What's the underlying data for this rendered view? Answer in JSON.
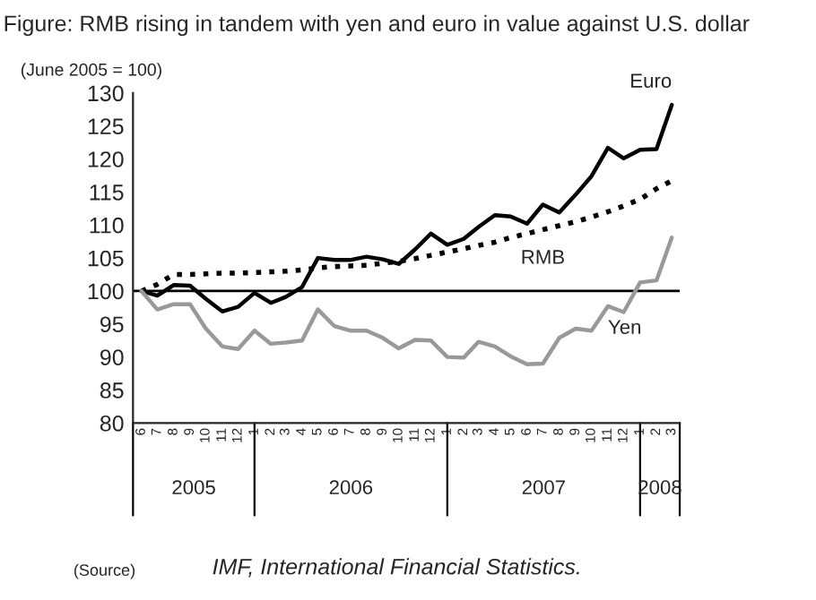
{
  "chart_data": {
    "type": "line",
    "title": "Figure: RMB rising in tandem with yen and euro in value against U.S. dollar",
    "ylabel": "(June 2005 = 100)",
    "x": [
      "2005-06",
      "2005-07",
      "2005-08",
      "2005-09",
      "2005-10",
      "2005-11",
      "2005-12",
      "2006-01",
      "2006-02",
      "2006-03",
      "2006-04",
      "2006-05",
      "2006-06",
      "2006-07",
      "2006-08",
      "2006-09",
      "2006-10",
      "2006-11",
      "2006-12",
      "2007-01",
      "2007-02",
      "2007-03",
      "2007-04",
      "2007-05",
      "2007-06",
      "2007-07",
      "2007-08",
      "2007-09",
      "2007-10",
      "2007-11",
      "2007-12",
      "2008-01",
      "2008-02",
      "2008-03"
    ],
    "series": [
      {
        "name": "Euro",
        "color": "#000000",
        "line_style": "solid",
        "values": [
          100,
          99.3,
          100.9,
          100.8,
          98.8,
          96.9,
          97.6,
          99.7,
          98.2,
          99.1,
          100.6,
          105.0,
          104.7,
          104.7,
          105.2,
          104.8,
          104.1,
          106.3,
          108.7,
          107.0,
          107.9,
          109.7,
          111.5,
          111.3,
          110.2,
          113.1,
          111.9,
          114.6,
          117.4,
          121.7,
          120.1,
          121.4,
          121.5,
          128.2
        ]
      },
      {
        "name": "RMB",
        "color": "#000000",
        "line_style": "dotted",
        "values": [
          100,
          101.0,
          102.5,
          102.5,
          102.6,
          102.7,
          102.7,
          102.8,
          102.9,
          103.0,
          103.2,
          103.5,
          103.7,
          103.8,
          103.9,
          104.2,
          104.5,
          104.9,
          105.4,
          105.9,
          106.4,
          106.9,
          107.4,
          108.1,
          108.7,
          109.3,
          109.9,
          110.5,
          111.2,
          112.0,
          112.9,
          113.9,
          115.5,
          116.7
        ]
      },
      {
        "name": "Yen",
        "color": "#999999",
        "line_style": "solid",
        "values": [
          100,
          97.2,
          98.0,
          98.0,
          94.3,
          91.6,
          91.2,
          94.0,
          92.0,
          92.2,
          92.5,
          97.2,
          94.7,
          94.0,
          94.0,
          92.9,
          91.3,
          92.6,
          92.5,
          90.0,
          89.9,
          92.3,
          91.6,
          90.1,
          88.9,
          89.0,
          92.9,
          94.3,
          94.0,
          97.7,
          96.8,
          101.3,
          101.6,
          108.1
        ]
      }
    ],
    "xlim": [
      "2005-05-16",
      "2008-03-16"
    ],
    "xticks": [
      {
        "value": "2005-06",
        "label": "6"
      },
      {
        "value": "2005-07",
        "label": "7"
      },
      {
        "value": "2005-08",
        "label": "8"
      },
      {
        "value": "2005-09",
        "label": "9"
      },
      {
        "value": "2005-10",
        "label": "10"
      },
      {
        "value": "2005-11",
        "label": "11"
      },
      {
        "value": "2005-12",
        "label": "12"
      },
      {
        "value": "2006-01",
        "label": "1"
      },
      {
        "value": "2006-02",
        "label": "2"
      },
      {
        "value": "2006-03",
        "label": "3"
      },
      {
        "value": "2006-04",
        "label": "4"
      },
      {
        "value": "2006-05",
        "label": "5"
      },
      {
        "value": "2006-06",
        "label": "6"
      },
      {
        "value": "2006-07",
        "label": "7"
      },
      {
        "value": "2006-08",
        "label": "8"
      },
      {
        "value": "2006-09",
        "label": "9"
      },
      {
        "value": "2006-10",
        "label": "10"
      },
      {
        "value": "2006-11",
        "label": "11"
      },
      {
        "value": "2006-12",
        "label": "12"
      },
      {
        "value": "2007-01",
        "label": "1"
      },
      {
        "value": "2007-02",
        "label": "2"
      },
      {
        "value": "2007-03",
        "label": "3"
      },
      {
        "value": "2007-04",
        "label": "4"
      },
      {
        "value": "2007-05",
        "label": "5"
      },
      {
        "value": "2007-06",
        "label": "6"
      },
      {
        "value": "2007-07",
        "label": "7"
      },
      {
        "value": "2007-08",
        "label": "8"
      },
      {
        "value": "2007-09",
        "label": "9"
      },
      {
        "value": "2007-10",
        "label": "10"
      },
      {
        "value": "2007-11",
        "label": "11"
      },
      {
        "value": "2007-12",
        "label": "12"
      },
      {
        "value": "2008-01",
        "label": "1"
      },
      {
        "value": "2008-02",
        "label": "2"
      },
      {
        "value": "2008-03",
        "label": "3"
      }
    ],
    "ylim": [
      80,
      130
    ],
    "yticks": [
      80,
      85,
      90,
      95,
      100,
      105,
      110,
      115,
      120,
      125,
      130
    ],
    "ref_lines": [
      {
        "axis": "y",
        "value": 100,
        "color": "#000000"
      }
    ],
    "annotations": [
      "2005",
      "2006",
      "2007",
      "2008",
      "(Source)",
      "IMF, International Financial Statistics."
    ],
    "grid": false,
    "legend": false,
    "marker": "none"
  }
}
